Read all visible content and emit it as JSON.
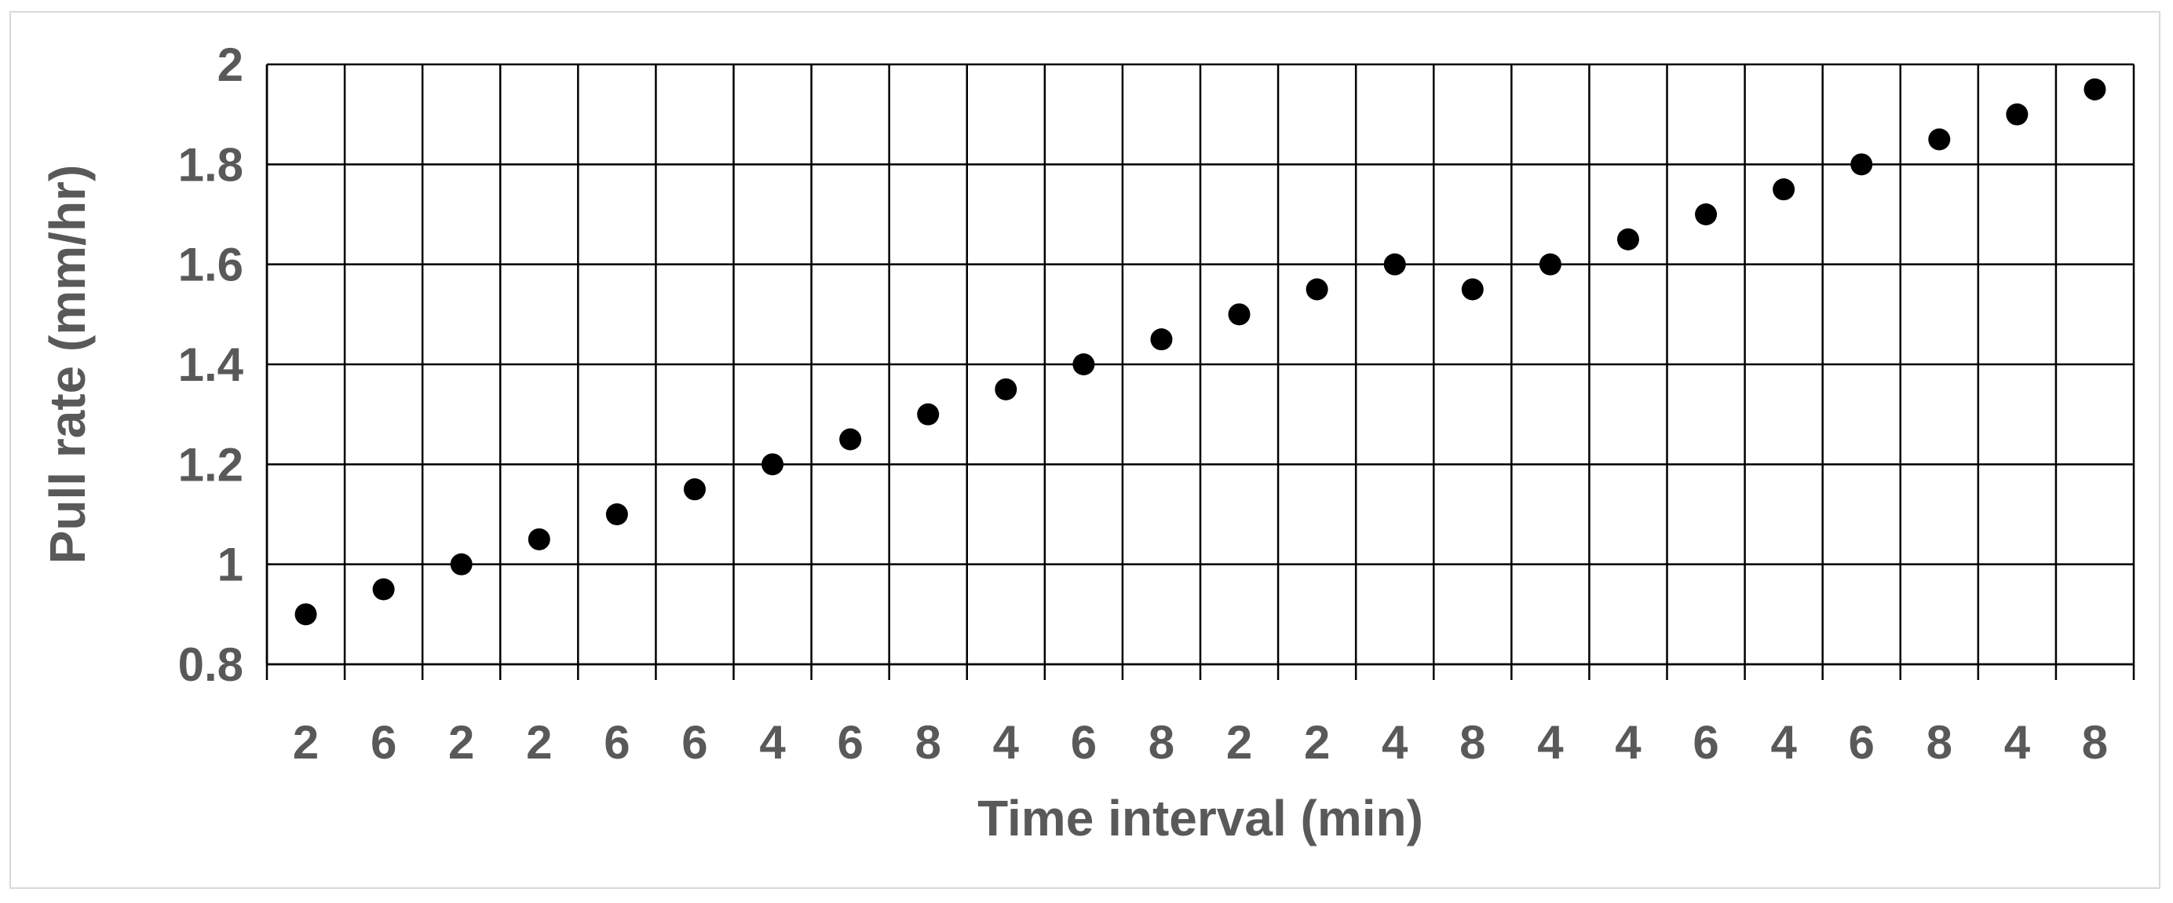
{
  "chart_data": {
    "type": "scatter",
    "xlabel": "Time interval (min)",
    "ylabel": "Pull rate (mm/hr)",
    "categories": [
      "2",
      "6",
      "2",
      "2",
      "6",
      "6",
      "4",
      "6",
      "8",
      "4",
      "6",
      "8",
      "2",
      "2",
      "4",
      "8",
      "4",
      "4",
      "6",
      "4",
      "6",
      "8",
      "4",
      "8"
    ],
    "values": [
      0.9,
      0.95,
      1.0,
      1.05,
      1.1,
      1.15,
      1.2,
      1.25,
      1.3,
      1.35,
      1.4,
      1.45,
      1.5,
      1.55,
      1.6,
      1.55,
      1.6,
      1.65,
      1.7,
      1.75,
      1.8,
      1.85,
      1.9,
      1.95
    ],
    "ylim": [
      0.8,
      2
    ],
    "yticks": [
      0.8,
      1,
      1.2,
      1.4,
      1.6,
      1.8,
      2
    ],
    "ytick_labels": [
      "0.8",
      "1",
      "1.2",
      "1.4",
      "1.6",
      "1.8",
      "2"
    ],
    "grid": true,
    "legend": "none",
    "marker_color": "#000000",
    "text_color": "#595959"
  }
}
